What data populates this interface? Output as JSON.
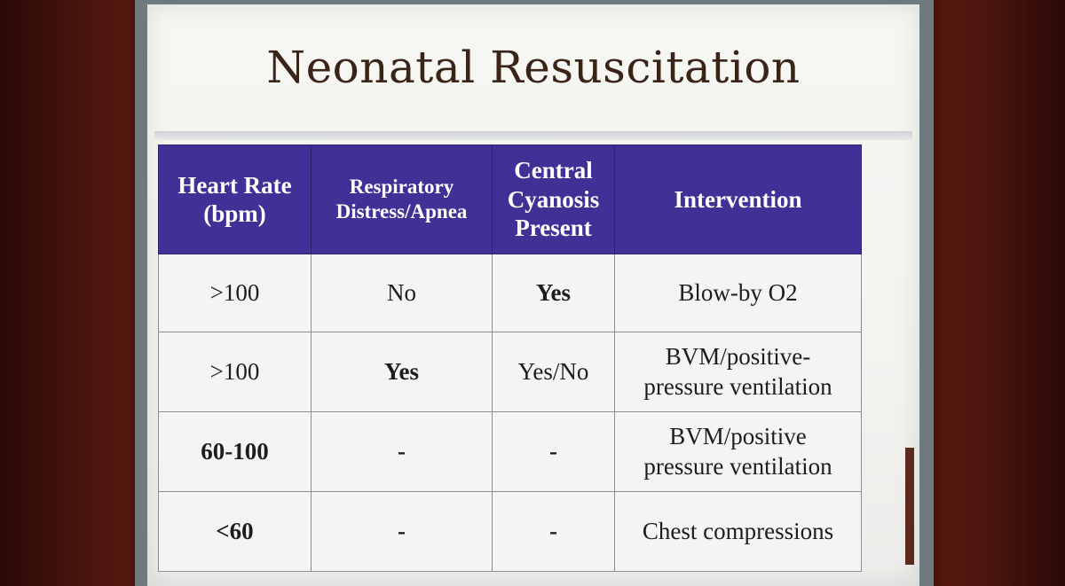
{
  "slide": {
    "title": "Neonatal Resuscitation"
  },
  "table": {
    "headers": [
      [
        "Heart Rate",
        "(bpm)"
      ],
      [
        "Respiratory",
        "Distress/Apnea"
      ],
      [
        "Central",
        "Cyanosis",
        "Present"
      ],
      [
        "Intervention"
      ]
    ],
    "rows": [
      {
        "heart_rate": ">100",
        "respiratory_distress": "No",
        "cyanosis": "Yes",
        "intervention": [
          "Blow-by O2"
        ]
      },
      {
        "heart_rate": ">100",
        "respiratory_distress": "Yes",
        "cyanosis": "Yes/No",
        "intervention": [
          "BVM/positive-",
          "pressure ventilation"
        ]
      },
      {
        "heart_rate": "60-100",
        "respiratory_distress": "-",
        "cyanosis": "-",
        "intervention": [
          "BVM/positive",
          "pressure ventilation"
        ]
      },
      {
        "heart_rate": "<60",
        "respiratory_distress": "-",
        "cyanosis": "-",
        "intervention": [
          "Chest compressions"
        ]
      }
    ]
  },
  "colors": {
    "header_background": "#3f3196",
    "header_text": "#ffffff",
    "title_text": "#3a2418",
    "cell_background": "#f4f4f2"
  }
}
